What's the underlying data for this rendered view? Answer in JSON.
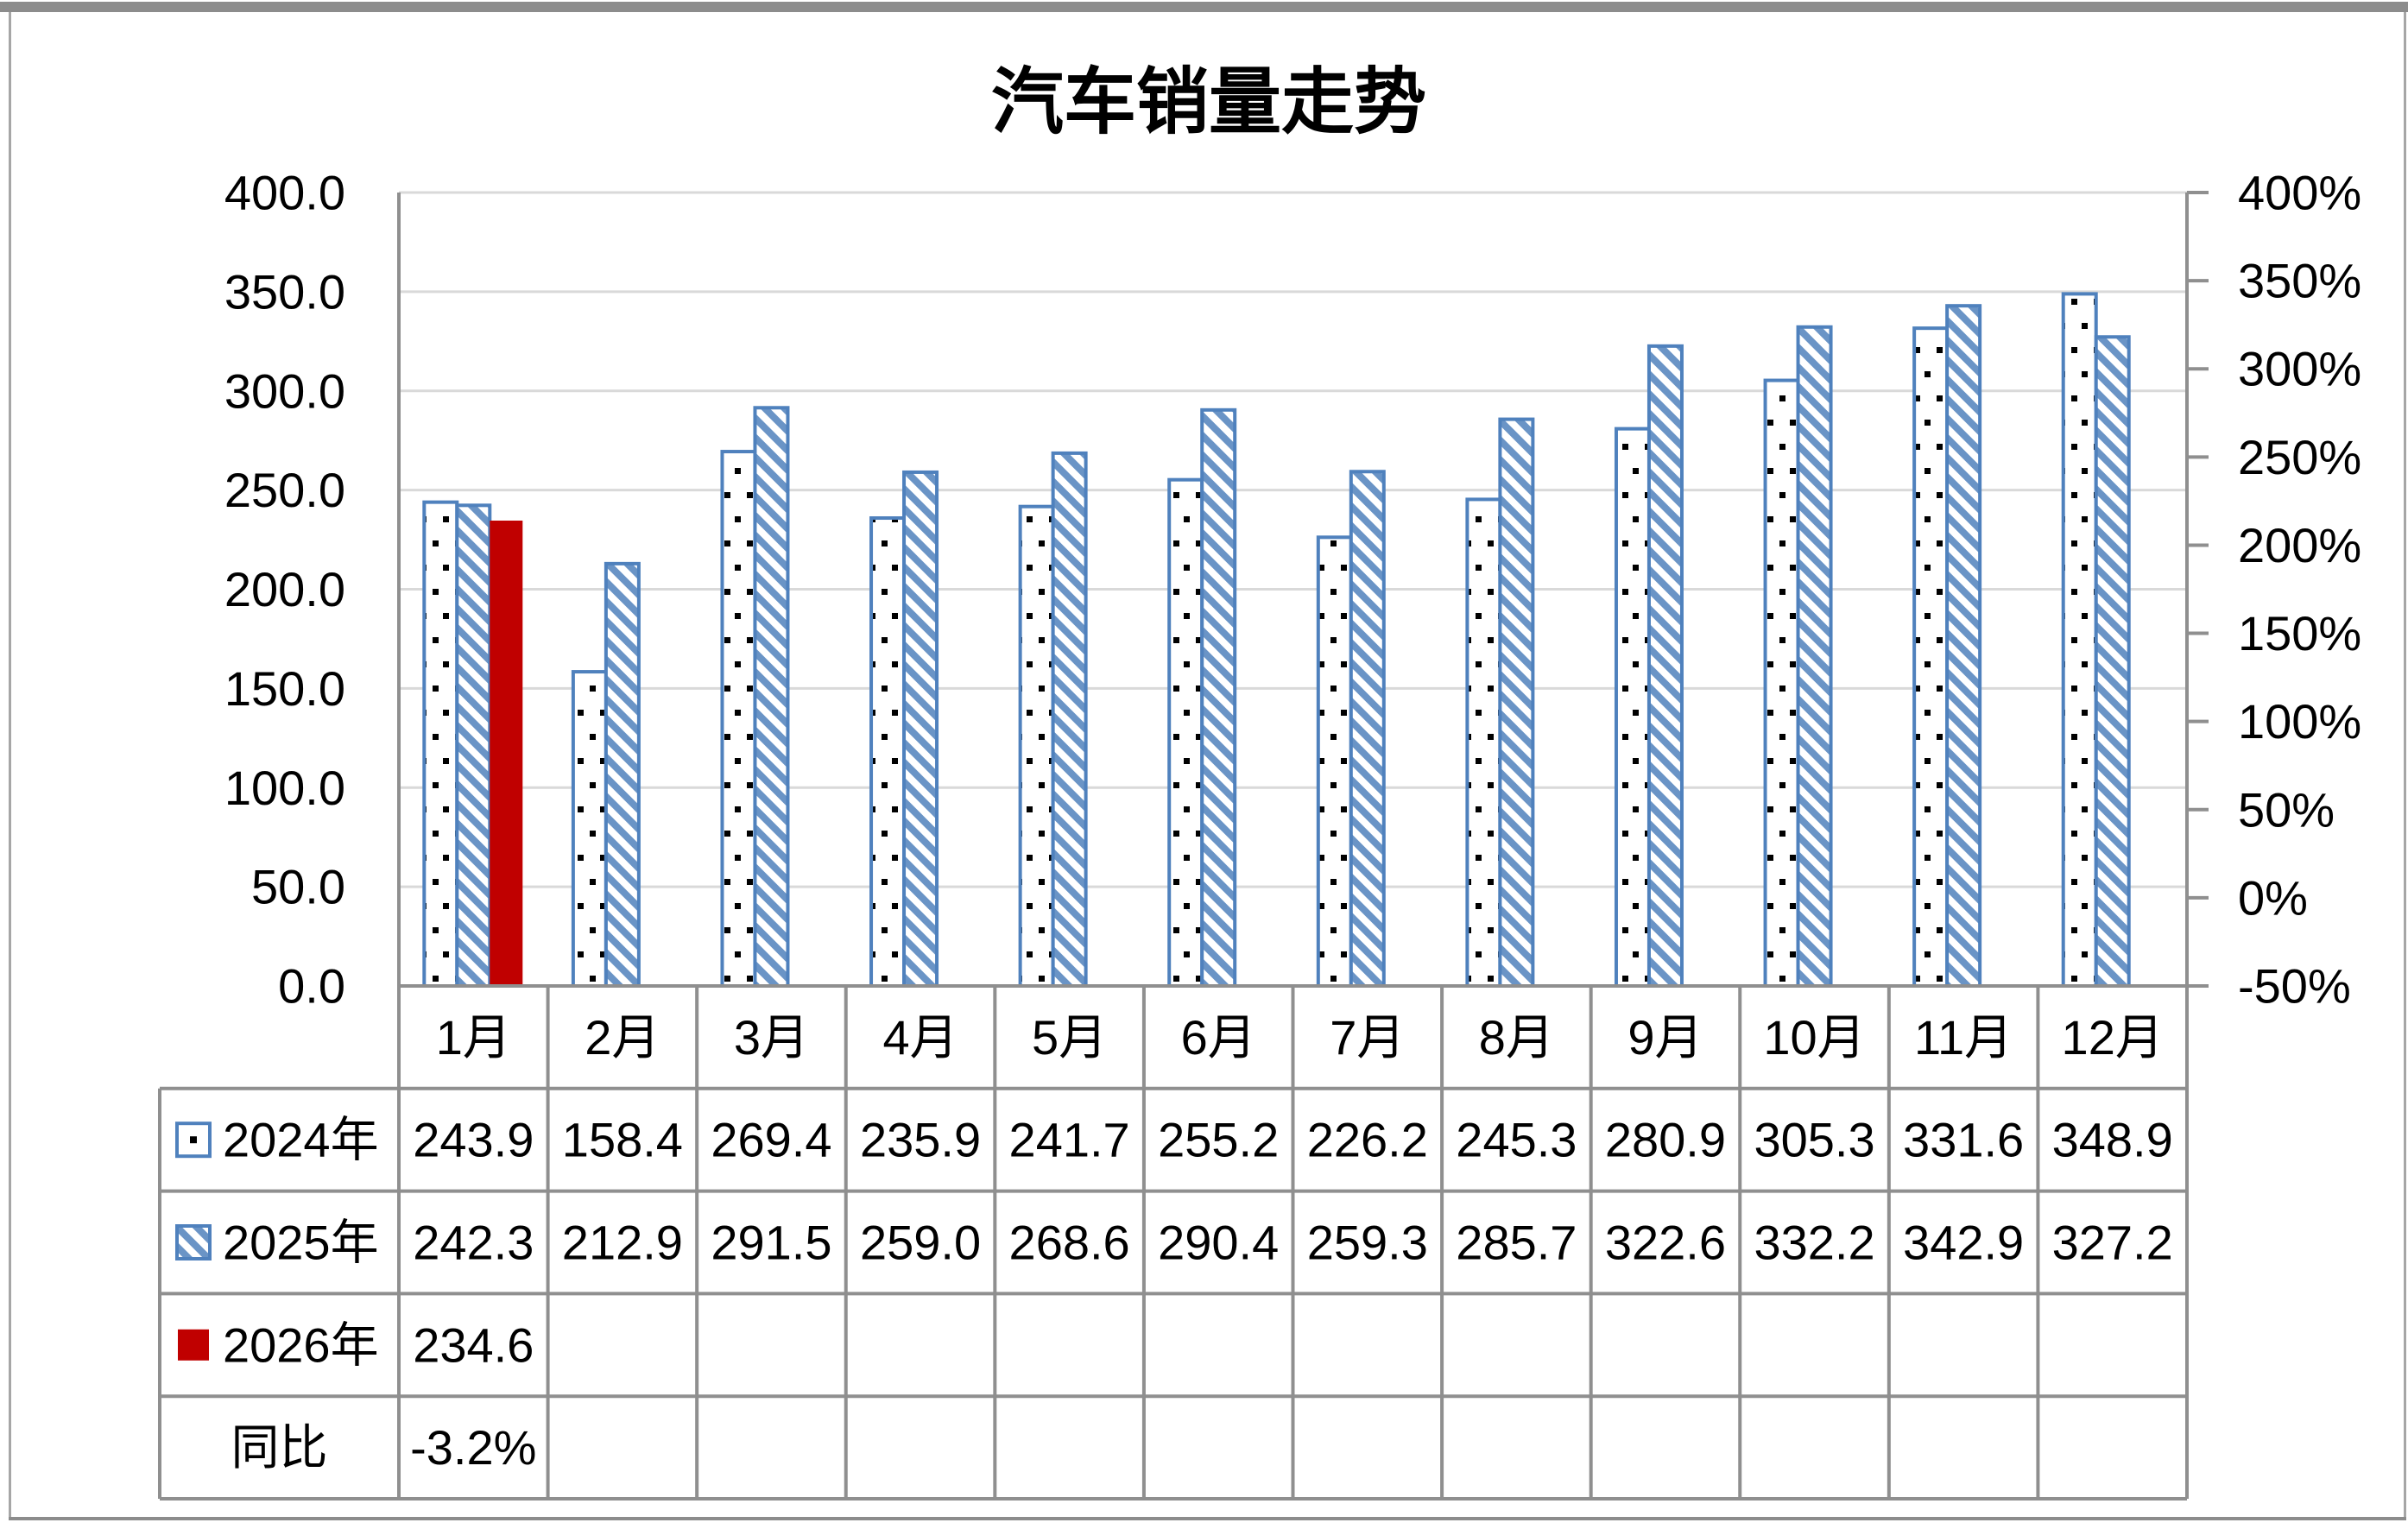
{
  "frame": {
    "border_color": "#8c8c8c",
    "side_border_color": "#a6a6a6"
  },
  "chart": {
    "title": "汽车销量走势"
  },
  "chart_data": {
    "type": "bar",
    "title": "汽车销量走势",
    "categories": [
      "1月",
      "2月",
      "3月",
      "4月",
      "5月",
      "6月",
      "7月",
      "8月",
      "9月",
      "10月",
      "11月",
      "12月"
    ],
    "series": [
      {
        "name": "2024年",
        "pattern": "dots",
        "border_color": "#4f81bd",
        "pattern_color": "#000000",
        "values": [
          243.9,
          158.4,
          269.4,
          235.9,
          241.7,
          255.2,
          226.2,
          245.3,
          280.9,
          305.3,
          331.6,
          348.9
        ]
      },
      {
        "name": "2025年",
        "pattern": "diagonal-hatch",
        "border_color": "#4f81bd",
        "pattern_color": "#6a94c6",
        "values": [
          242.3,
          212.9,
          291.5,
          259.0,
          268.6,
          290.4,
          259.3,
          285.7,
          322.6,
          332.2,
          342.9,
          327.2
        ]
      },
      {
        "name": "2026年",
        "pattern": "solid",
        "color": "#c00000",
        "values": [
          234.6,
          null,
          null,
          null,
          null,
          null,
          null,
          null,
          null,
          null,
          null,
          null
        ]
      }
    ],
    "extra_table_rows": [
      {
        "name": "同比",
        "values": [
          "-3.2%",
          "",
          "",
          "",
          "",
          "",
          "",
          "",
          "",
          "",
          "",
          ""
        ]
      }
    ],
    "left_axis": {
      "min": 0,
      "max": 400,
      "step": 50,
      "tick_labels": [
        "400.0",
        "350.0",
        "300.0",
        "250.0",
        "200.0",
        "150.0",
        "100.0",
        "50.0",
        "0.0"
      ]
    },
    "right_axis": {
      "min": -50,
      "max": 400,
      "step": 50,
      "tick_labels": [
        "400%",
        "350%",
        "300%",
        "250%",
        "200%",
        "150%",
        "100%",
        "50%",
        "0%",
        "-50%"
      ]
    },
    "grid": true,
    "legend_position": "data-table-left",
    "colors": {
      "grid": "#d9d9d9",
      "axis": "#8f8f8f",
      "table_border": "#8f8f8f",
      "text": "#000000"
    }
  }
}
